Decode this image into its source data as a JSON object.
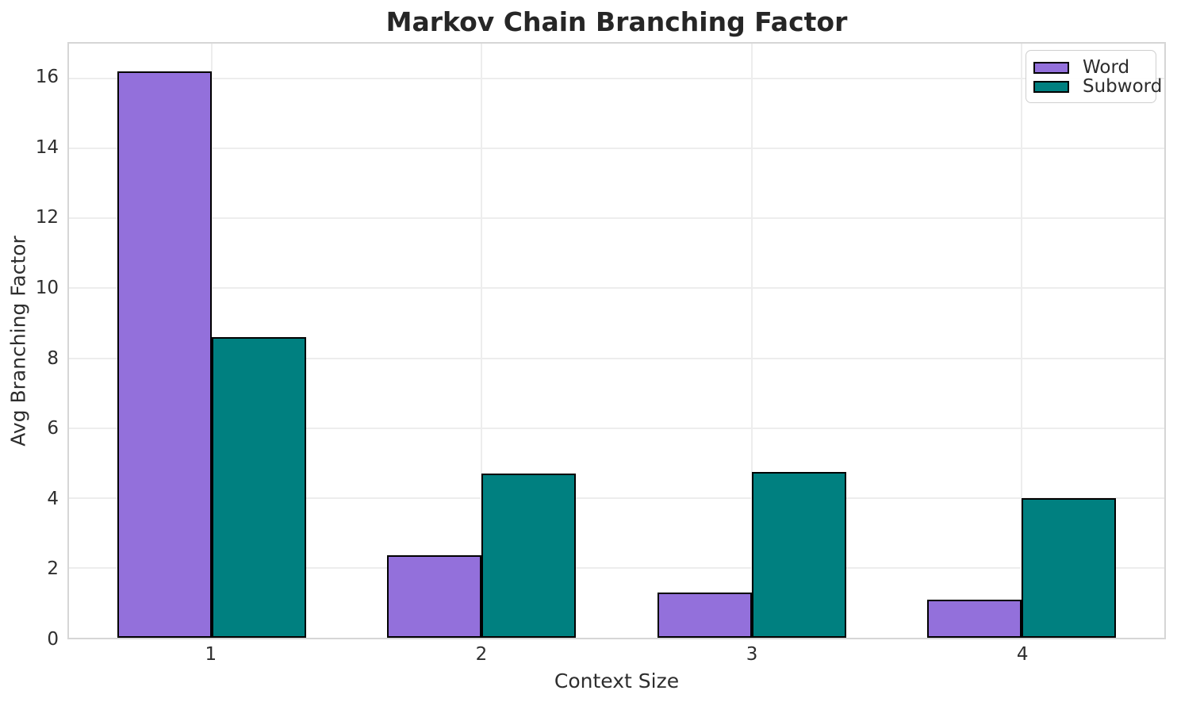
{
  "title": "Markov Chain Branching Factor",
  "chart_data": {
    "type": "bar",
    "title": "Markov Chain Branching Factor",
    "xlabel": "Context Size",
    "ylabel": "Avg Branching Factor",
    "categories": [
      "1",
      "2",
      "3",
      "4"
    ],
    "series": [
      {
        "name": "Word",
        "color": "#9370DB",
        "values": [
          16.2,
          2.35,
          1.3,
          1.1
        ]
      },
      {
        "name": "Subword",
        "color": "#008080",
        "values": [
          8.6,
          4.7,
          4.75,
          4.0
        ]
      }
    ],
    "bar_edge_color": "#000000",
    "bar_width_units": 0.35,
    "yticks": [
      0,
      2,
      4,
      6,
      8,
      10,
      12,
      14,
      16
    ],
    "ylim": [
      0,
      17
    ],
    "xlim_units": [
      -0.53,
      3.53
    ],
    "grid": true,
    "grid_color": "#ededed",
    "legend_position": "upper right"
  }
}
